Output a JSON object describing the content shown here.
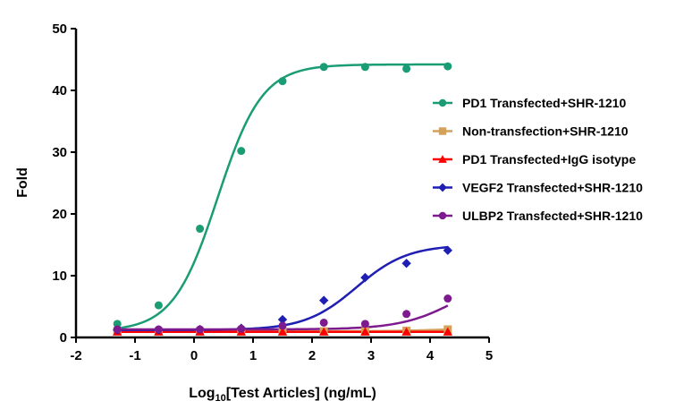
{
  "chart_data": {
    "type": "scatter",
    "title": "",
    "xlabel_prefix": "Log",
    "xlabel_sub": "10",
    "xlabel_suffix": "[Test Articles] (ng/mL)",
    "ylabel": "Fold",
    "xlim": [
      -2,
      5
    ],
    "ylim": [
      0,
      50
    ],
    "xticks": [
      "-2",
      "-1",
      "0",
      "1",
      "2",
      "3",
      "4",
      "5"
    ],
    "yticks": [
      "0",
      "10",
      "20",
      "30",
      "40",
      "50"
    ],
    "grid": false,
    "legend_position": "right",
    "series": [
      {
        "name": "PD1 Transfected+SHR-1210",
        "color": "#1a9c74",
        "marker": "circle",
        "x": [
          -1.3,
          -0.6,
          0.1,
          0.8,
          1.5,
          2.2,
          2.9,
          3.6,
          4.3
        ],
        "y": [
          2.2,
          5.2,
          17.6,
          30.2,
          41.5,
          43.8,
          43.8,
          43.5,
          43.9
        ],
        "curve": {
          "bottom": 1.0,
          "top": 44.2,
          "ec50_log": 0.4,
          "hill": 1.15
        }
      },
      {
        "name": "Non-transfection+SHR-1210",
        "color": "#d4a15a",
        "marker": "square",
        "x": [
          -1.3,
          -0.6,
          0.1,
          0.8,
          1.5,
          2.2,
          2.9,
          3.6,
          4.3
        ],
        "y": [
          1.0,
          1.0,
          1.0,
          1.0,
          1.0,
          1.0,
          1.0,
          1.1,
          1.3
        ],
        "curve": {
          "bottom": 1.0,
          "top": 1.4,
          "ec50_log": 4.0,
          "hill": 1.2
        }
      },
      {
        "name": "PD1 Transfected+IgG isotype",
        "color": "#ff0000",
        "marker": "triangle",
        "x": [
          -1.3,
          -0.6,
          0.1,
          0.8,
          1.5,
          2.2,
          2.9,
          3.6,
          4.3
        ],
        "y": [
          0.9,
          0.9,
          0.9,
          0.9,
          0.9,
          0.9,
          0.9,
          0.9,
          0.9
        ],
        "curve": {
          "bottom": 0.9,
          "top": 0.9,
          "ec50_log": 2.0,
          "hill": 1.0
        }
      },
      {
        "name": "VEGF2 Transfected+SHR-1210",
        "color": "#1f1fb4",
        "marker": "diamond",
        "x": [
          -1.3,
          -0.6,
          0.1,
          0.8,
          1.5,
          2.2,
          2.9,
          3.6,
          4.3
        ],
        "y": [
          1.2,
          1.2,
          1.3,
          1.5,
          2.9,
          6.0,
          9.7,
          12.0,
          14.1
        ],
        "curve": {
          "bottom": 1.2,
          "top": 15.0,
          "ec50_log": 2.75,
          "hill": 1.0
        }
      },
      {
        "name": "ULBP2 Transfected+SHR-1210",
        "color": "#7d1b8e",
        "marker": "circle",
        "x": [
          -1.3,
          -0.6,
          0.1,
          0.8,
          1.5,
          2.2,
          2.9,
          3.6,
          4.3
        ],
        "y": [
          1.3,
          1.3,
          1.3,
          1.4,
          1.9,
          2.4,
          2.2,
          3.8,
          6.3
        ],
        "curve": {
          "bottom": 1.3,
          "top": 11.0,
          "ec50_log": 4.5,
          "hill": 0.9
        }
      }
    ]
  }
}
